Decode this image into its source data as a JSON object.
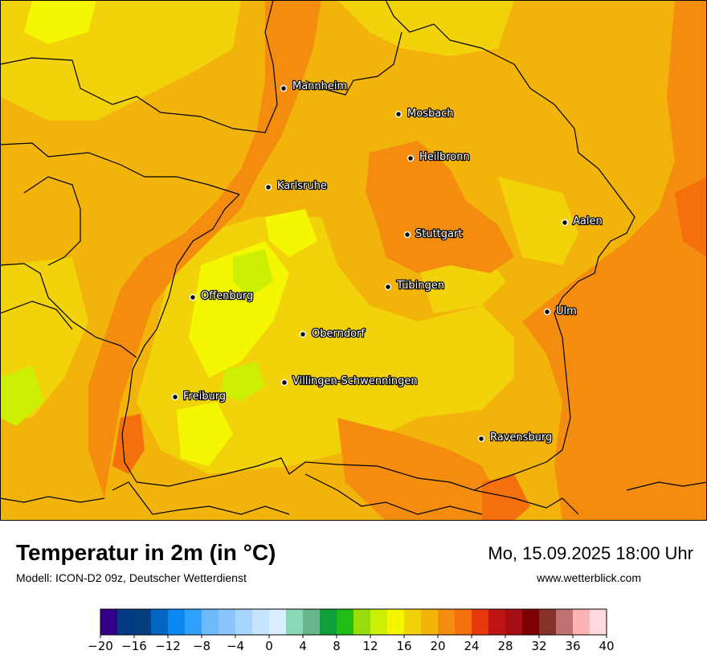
{
  "title": "Temperatur in 2m (in °C)",
  "model": "Modell: ICON-D2 09z, Deutscher Wetterdienst",
  "datetime": "Mo, 15.09.2025 18:00 Uhr",
  "site": "www.wetterblick.com",
  "cities": [
    {
      "name": "Mannheim"
    },
    {
      "name": "Mosbach"
    },
    {
      "name": "Heilbronn"
    },
    {
      "name": "Karlsruhe"
    },
    {
      "name": "Aalen"
    },
    {
      "name": "Stuttgart"
    },
    {
      "name": "Tübingen"
    },
    {
      "name": "Offenburg"
    },
    {
      "name": "Ulm"
    },
    {
      "name": "Oberndorf"
    },
    {
      "name": "Villingen-Schwenningen"
    },
    {
      "name": "Freiburg"
    },
    {
      "name": "Ravensburg"
    }
  ],
  "colorbar": {
    "min": -20,
    "max": 40,
    "step": 2,
    "tick_labels": [
      "−20",
      "−16",
      "−12",
      "−8",
      "−4",
      "0",
      "4",
      "8",
      "12",
      "16",
      "20",
      "24",
      "28",
      "32",
      "36",
      "40"
    ],
    "colors": [
      "#34008a",
      "#033a82",
      "#033f7c",
      "#0366c0",
      "#0a87f0",
      "#2fa0fb",
      "#6fbafd",
      "#8ac6fd",
      "#a9d6fe",
      "#c6e4fe",
      "#dbeeff",
      "#8ad8b6",
      "#6ab48d",
      "#0f9e3a",
      "#1fbe14",
      "#99dc0b",
      "#cdef03",
      "#f4f602",
      "#f1d20b",
      "#f3b40a",
      "#f48d0f",
      "#f3700d",
      "#e6380b",
      "#bf1414",
      "#a60e14",
      "#7c0000",
      "#86312b",
      "#c07171",
      "#feb3b3",
      "#ffdadc"
    ]
  }
}
